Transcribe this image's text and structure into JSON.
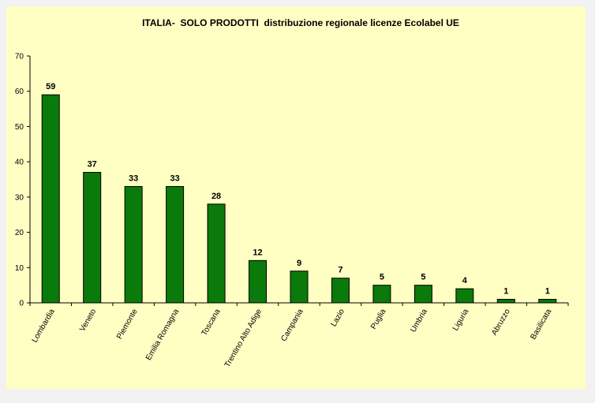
{
  "chart_data": {
    "type": "bar",
    "title": "ITALIA-  SOLO PRODOTTI  distribuzione regionale licenze Ecolabel UE",
    "xlabel": "",
    "ylabel": "",
    "categories": [
      "Lombardia",
      "Veneto",
      "Piemonte",
      "Emilia Romagna",
      "Toscana",
      "Trentino Alto Adige",
      "Campania",
      "Lazio",
      "Puglia",
      "Umbria",
      "Liguria",
      "Abruzzo",
      "Basilicata"
    ],
    "values": [
      59,
      37,
      33,
      33,
      28,
      12,
      9,
      7,
      5,
      5,
      4,
      1,
      1
    ],
    "ylim": [
      0,
      70
    ],
    "yticks": [
      0,
      10,
      20,
      30,
      40,
      50,
      60,
      70
    ],
    "grid": false,
    "legend": "none",
    "colors": {
      "bar": "#0a7a0a",
      "bar_stroke": "#000000",
      "background": "#ffffc4",
      "outer": "#f2f2f2"
    }
  }
}
